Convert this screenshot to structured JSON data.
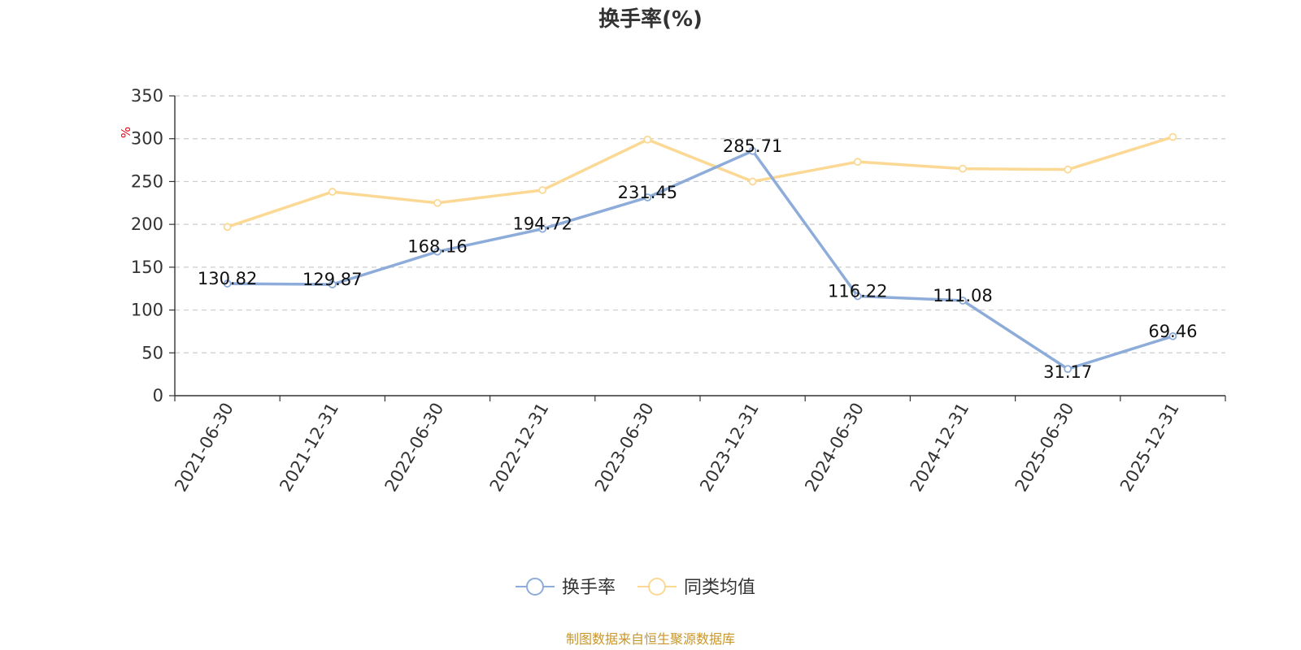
{
  "chart_data": {
    "type": "line",
    "title": "换手率(%)",
    "ylabel": "%",
    "xlabel": "",
    "categories": [
      "2021-06-30",
      "2021-12-31",
      "2022-06-30",
      "2022-12-31",
      "2023-06-30",
      "2023-12-31",
      "2024-06-30",
      "2024-12-31",
      "2025-06-30",
      "2025-12-31"
    ],
    "ylim": [
      0,
      350
    ],
    "yticks": [
      0,
      50,
      100,
      150,
      200,
      250,
      300,
      350
    ],
    "grid": "horizontal-dashed",
    "legend_position": "bottom-center",
    "series": [
      {
        "name": "换手率",
        "color": "#8eacd9",
        "values": [
          130.82,
          129.87,
          168.16,
          194.72,
          231.45,
          285.71,
          116.22,
          111.08,
          31.17,
          69.46
        ],
        "value_labels": [
          "130.82",
          "129.87",
          "168.16",
          "194.72",
          "231.45",
          "285.71",
          "116.22",
          "111.08",
          "31.17",
          "69.46"
        ]
      },
      {
        "name": "同类均值",
        "color": "#fbd994",
        "values": [
          197,
          238,
          225,
          240,
          299,
          250,
          273,
          265,
          264,
          302
        ]
      }
    ]
  },
  "unit_color": "#e60012",
  "footer": {
    "source_text": "制图数据来自恒生聚源数据库",
    "color": "#c8962a"
  }
}
